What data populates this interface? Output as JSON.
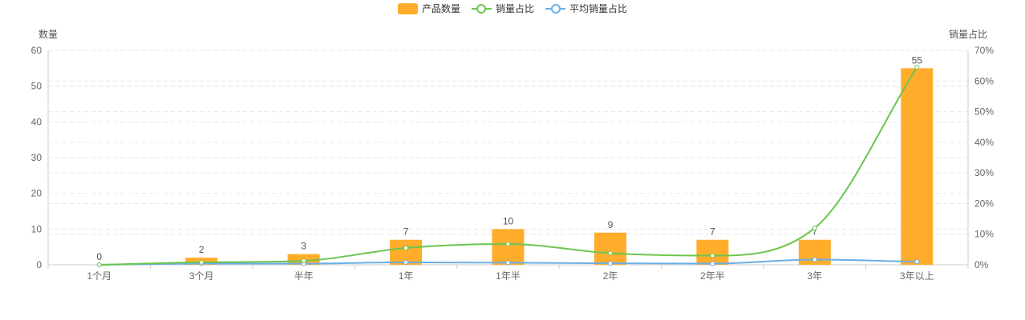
{
  "legend": {
    "bar_label": "产品数量",
    "line1_label": "销量占比",
    "line2_label": "平均销量占比"
  },
  "colors": {
    "bar": "#FFAD2B",
    "line1": "#6CC54F",
    "line2": "#6AAEE6",
    "axis_text": "#666666",
    "grid": "#E6E6E6"
  },
  "chart_data": {
    "type": "bar",
    "categories": [
      "1个月",
      "3个月",
      "半年",
      "1年",
      "1年半",
      "2年",
      "2年半",
      "3年",
      "3年以上"
    ],
    "y_left": {
      "label": "数量",
      "ylim": [
        0,
        60
      ],
      "ticks": [
        0,
        10,
        20,
        30,
        40,
        50,
        60
      ]
    },
    "y_right": {
      "label": "销量占比",
      "ylim": [
        0,
        70
      ],
      "ticks": [
        "0%",
        "10%",
        "20%",
        "30%",
        "40%",
        "50%",
        "60%",
        "70%"
      ]
    },
    "series": [
      {
        "name": "产品数量",
        "type": "bar",
        "axis": "left",
        "values": [
          0,
          2,
          3,
          7,
          10,
          9,
          7,
          7,
          55
        ]
      },
      {
        "name": "销量占比",
        "type": "line",
        "axis": "right",
        "smooth": true,
        "values": [
          0,
          0.8,
          1.3,
          5.5,
          6.8,
          3.8,
          3.0,
          12.0,
          64.5
        ]
      },
      {
        "name": "平均销量占比",
        "type": "line",
        "axis": "right",
        "smooth": true,
        "values": [
          0,
          0.4,
          0.4,
          0.8,
          0.7,
          0.5,
          0.4,
          1.7,
          1.0
        ]
      }
    ],
    "grid": "dashed-horizontal",
    "legend_position": "top-center"
  }
}
